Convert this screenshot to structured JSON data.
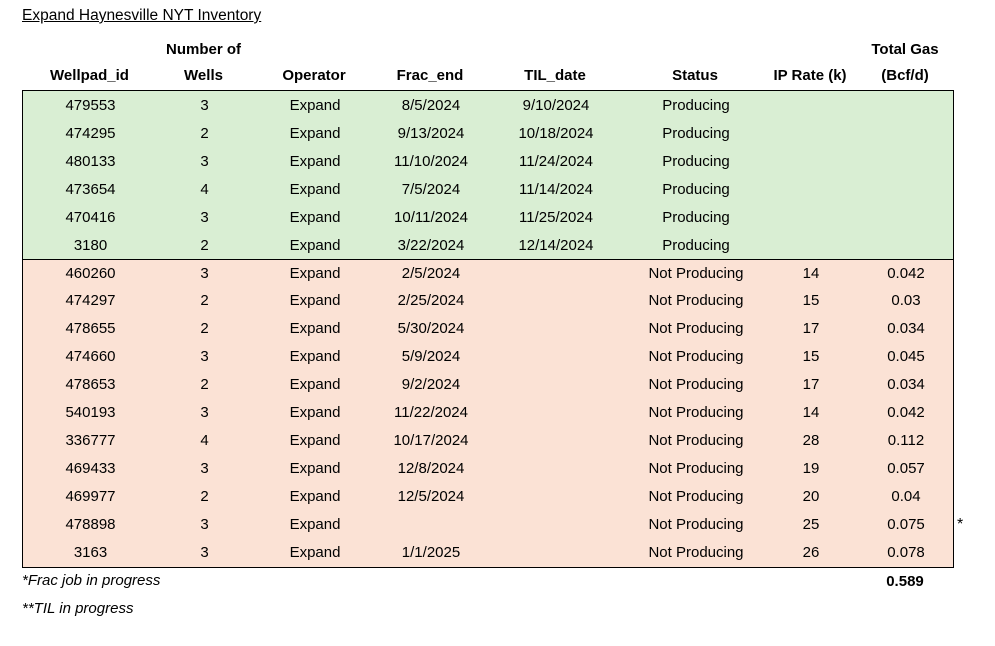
{
  "title": "Expand Haynesville NYT Inventory",
  "table": {
    "columns": [
      {
        "key": "wellpad_id",
        "line1": "",
        "line2": "Wellpad_id"
      },
      {
        "key": "wells",
        "line1": "Number of",
        "line2": "Wells"
      },
      {
        "key": "operator",
        "line1": "",
        "line2": "Operator"
      },
      {
        "key": "frac_end",
        "line1": "",
        "line2": "Frac_end"
      },
      {
        "key": "til_date",
        "line1": "",
        "line2": "TIL_date"
      },
      {
        "key": "status",
        "line1": "",
        "line2": "Status"
      },
      {
        "key": "ip_rate",
        "line1": "",
        "line2": "IP Rate (k)"
      },
      {
        "key": "total_gas",
        "line1": "Total Gas",
        "line2": "(Bcf/d)"
      }
    ],
    "rows": [
      {
        "wellpad_id": "479553",
        "wells": "3",
        "operator": "Expand",
        "frac_end": "8/5/2024",
        "til_date": "9/10/2024",
        "status": "Producing",
        "ip_rate": "",
        "total_gas": "",
        "note": "",
        "group": "producing"
      },
      {
        "wellpad_id": "474295",
        "wells": "2",
        "operator": "Expand",
        "frac_end": "9/13/2024",
        "til_date": "10/18/2024",
        "status": "Producing",
        "ip_rate": "",
        "total_gas": "",
        "note": "",
        "group": "producing"
      },
      {
        "wellpad_id": "480133",
        "wells": "3",
        "operator": "Expand",
        "frac_end": "11/10/2024",
        "til_date": "11/24/2024",
        "status": "Producing",
        "ip_rate": "",
        "total_gas": "",
        "note": "",
        "group": "producing"
      },
      {
        "wellpad_id": "473654",
        "wells": "4",
        "operator": "Expand",
        "frac_end": "7/5/2024",
        "til_date": "11/14/2024",
        "status": "Producing",
        "ip_rate": "",
        "total_gas": "",
        "note": "",
        "group": "producing"
      },
      {
        "wellpad_id": "470416",
        "wells": "3",
        "operator": "Expand",
        "frac_end": "10/11/2024",
        "til_date": "11/25/2024",
        "status": "Producing",
        "ip_rate": "",
        "total_gas": "",
        "note": "",
        "group": "producing"
      },
      {
        "wellpad_id": "3180",
        "wells": "2",
        "operator": "Expand",
        "frac_end": "3/22/2024",
        "til_date": "12/14/2024",
        "status": "Producing",
        "ip_rate": "",
        "total_gas": "",
        "note": "",
        "group": "producing"
      },
      {
        "wellpad_id": "460260",
        "wells": "3",
        "operator": "Expand",
        "frac_end": "2/5/2024",
        "til_date": "",
        "status": "Not Producing",
        "ip_rate": "14",
        "total_gas": "0.042",
        "note": "",
        "group": "not-producing"
      },
      {
        "wellpad_id": "474297",
        "wells": "2",
        "operator": "Expand",
        "frac_end": "2/25/2024",
        "til_date": "",
        "status": "Not Producing",
        "ip_rate": "15",
        "total_gas": "0.03",
        "note": "",
        "group": "not-producing"
      },
      {
        "wellpad_id": "478655",
        "wells": "2",
        "operator": "Expand",
        "frac_end": "5/30/2024",
        "til_date": "",
        "status": "Not Producing",
        "ip_rate": "17",
        "total_gas": "0.034",
        "note": "",
        "group": "not-producing"
      },
      {
        "wellpad_id": "474660",
        "wells": "3",
        "operator": "Expand",
        "frac_end": "5/9/2024",
        "til_date": "",
        "status": "Not Producing",
        "ip_rate": "15",
        "total_gas": "0.045",
        "note": "",
        "group": "not-producing"
      },
      {
        "wellpad_id": "478653",
        "wells": "2",
        "operator": "Expand",
        "frac_end": "9/2/2024",
        "til_date": "",
        "status": "Not Producing",
        "ip_rate": "17",
        "total_gas": "0.034",
        "note": "",
        "group": "not-producing"
      },
      {
        "wellpad_id": "540193",
        "wells": "3",
        "operator": "Expand",
        "frac_end": "11/22/2024",
        "til_date": "",
        "status": "Not Producing",
        "ip_rate": "14",
        "total_gas": "0.042",
        "note": "",
        "group": "not-producing"
      },
      {
        "wellpad_id": "336777",
        "wells": "4",
        "operator": "Expand",
        "frac_end": "10/17/2024",
        "til_date": "",
        "status": "Not Producing",
        "ip_rate": "28",
        "total_gas": "0.112",
        "note": "",
        "group": "not-producing"
      },
      {
        "wellpad_id": "469433",
        "wells": "3",
        "operator": "Expand",
        "frac_end": "12/8/2024",
        "til_date": "",
        "status": "Not Producing",
        "ip_rate": "19",
        "total_gas": "0.057",
        "note": "",
        "group": "not-producing"
      },
      {
        "wellpad_id": "469977",
        "wells": "2",
        "operator": "Expand",
        "frac_end": "12/5/2024",
        "til_date": "",
        "status": "Not Producing",
        "ip_rate": "20",
        "total_gas": "0.04",
        "note": "",
        "group": "not-producing"
      },
      {
        "wellpad_id": "478898",
        "wells": "3",
        "operator": "Expand",
        "frac_end": "",
        "til_date": "",
        "status": "Not Producing",
        "ip_rate": "25",
        "total_gas": "0.075",
        "note": "*",
        "group": "not-producing"
      },
      {
        "wellpad_id": "3163",
        "wells": "3",
        "operator": "Expand",
        "frac_end": "1/1/2025",
        "til_date": "",
        "status": "Not Producing",
        "ip_rate": "26",
        "total_gas": "0.078",
        "note": "",
        "group": "not-producing"
      }
    ],
    "total_gas_sum": "0.589"
  },
  "footnotes": [
    "*Frac job in progress",
    "**TIL in progress"
  ],
  "colors": {
    "producing_fill": "#D9EED3",
    "not_producing_fill": "#FBE2D5",
    "border": "#000000"
  }
}
